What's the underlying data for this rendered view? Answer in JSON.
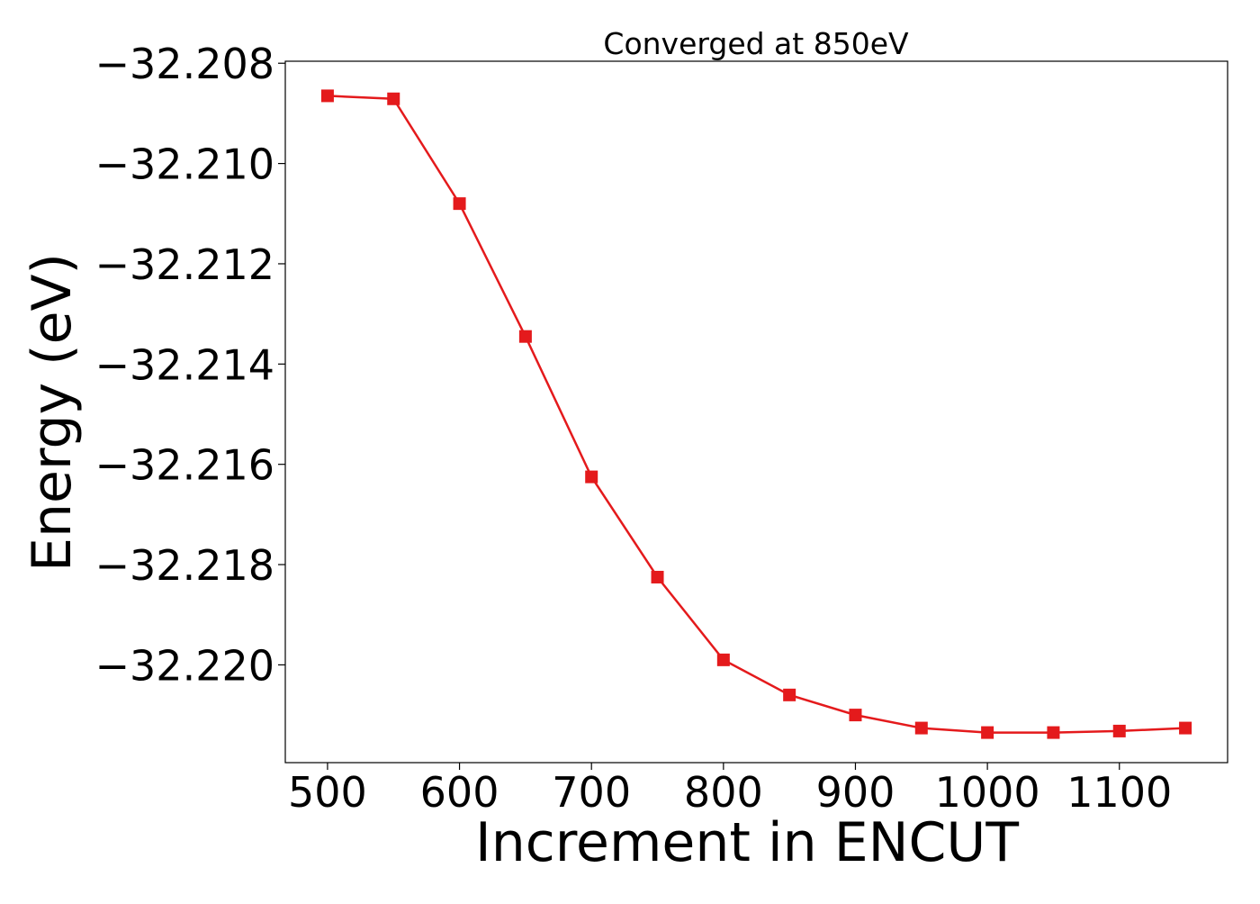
{
  "chart_data": {
    "type": "line",
    "title": "Converged at 850eV",
    "xlabel": "Increment in ENCUT",
    "ylabel": "Energy (eV)",
    "xlim": [
      468,
      1182
    ],
    "ylim": [
      -32.22195,
      -32.20796
    ],
    "xticks": [
      500,
      600,
      700,
      800,
      900,
      1000,
      1100
    ],
    "xtick_labels": [
      "500",
      "600",
      "700",
      "800",
      "900",
      "1000",
      "1100"
    ],
    "yticks": [
      -32.22,
      -32.218,
      -32.216,
      -32.214,
      -32.212,
      -32.21,
      -32.208
    ],
    "ytick_labels": [
      "−32.220",
      "−32.218",
      "−32.216",
      "−32.214",
      "−32.212",
      "−32.210",
      "−32.208"
    ],
    "grid": false,
    "series": [
      {
        "color": "#e41a1c",
        "marker": "square",
        "x": [
          500,
          550,
          600,
          650,
          700,
          750,
          800,
          850,
          900,
          950,
          1000,
          1050,
          1100,
          1150
        ],
        "y": [
          -32.20865,
          -32.20871,
          -32.2108,
          -32.21345,
          -32.21625,
          -32.21825,
          -32.2199,
          -32.2206,
          -32.221,
          -32.22126,
          -32.22135,
          -32.22135,
          -32.22132,
          -32.22126
        ]
      }
    ]
  }
}
